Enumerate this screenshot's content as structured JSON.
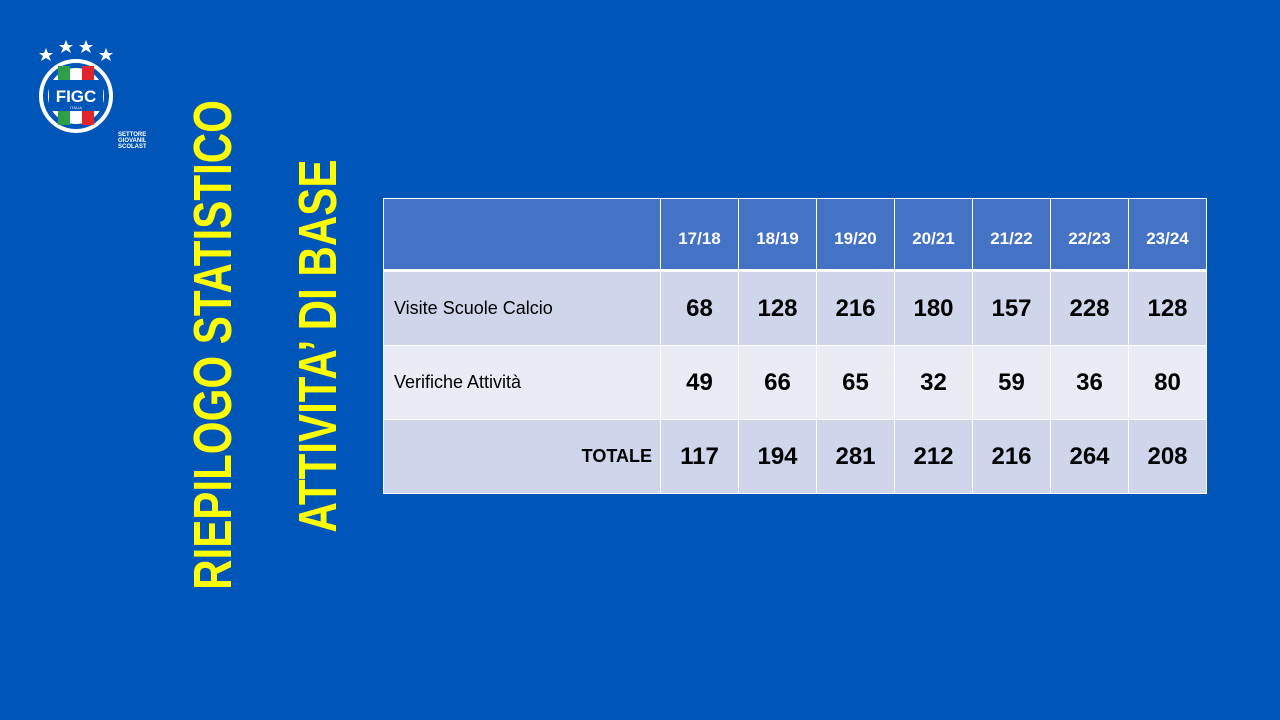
{
  "logo": {
    "text": "FIGC",
    "sub": "ITALIA",
    "org": [
      "SETTORE",
      "GIOVANILE E",
      "SCOLASTICO"
    ]
  },
  "titles": {
    "main": "RIEPILOGO STATISTICO",
    "sub": "ATTIVITA’  DI BASE"
  },
  "colors": {
    "background": "#0055b8",
    "title": "#ffff00",
    "header": "#4472c4",
    "row_dark": "#cfd5ea",
    "row_light": "#e9ebf5"
  },
  "table": {
    "columns": [
      "17/18",
      "18/19",
      "19/20",
      "20/21",
      "21/22",
      "22/23",
      "23/24"
    ],
    "rows": [
      {
        "label": "Visite Scuole Calcio",
        "values": [
          "68",
          "128",
          "216",
          "180",
          "157",
          "228",
          "128"
        ]
      },
      {
        "label": "Verifiche Attività",
        "values": [
          "49",
          "66",
          "65",
          "32",
          "59",
          "36",
          "80"
        ]
      },
      {
        "label": "TOTALE",
        "values": [
          "117",
          "194",
          "281",
          "212",
          "216",
          "264",
          "208"
        ]
      }
    ]
  }
}
